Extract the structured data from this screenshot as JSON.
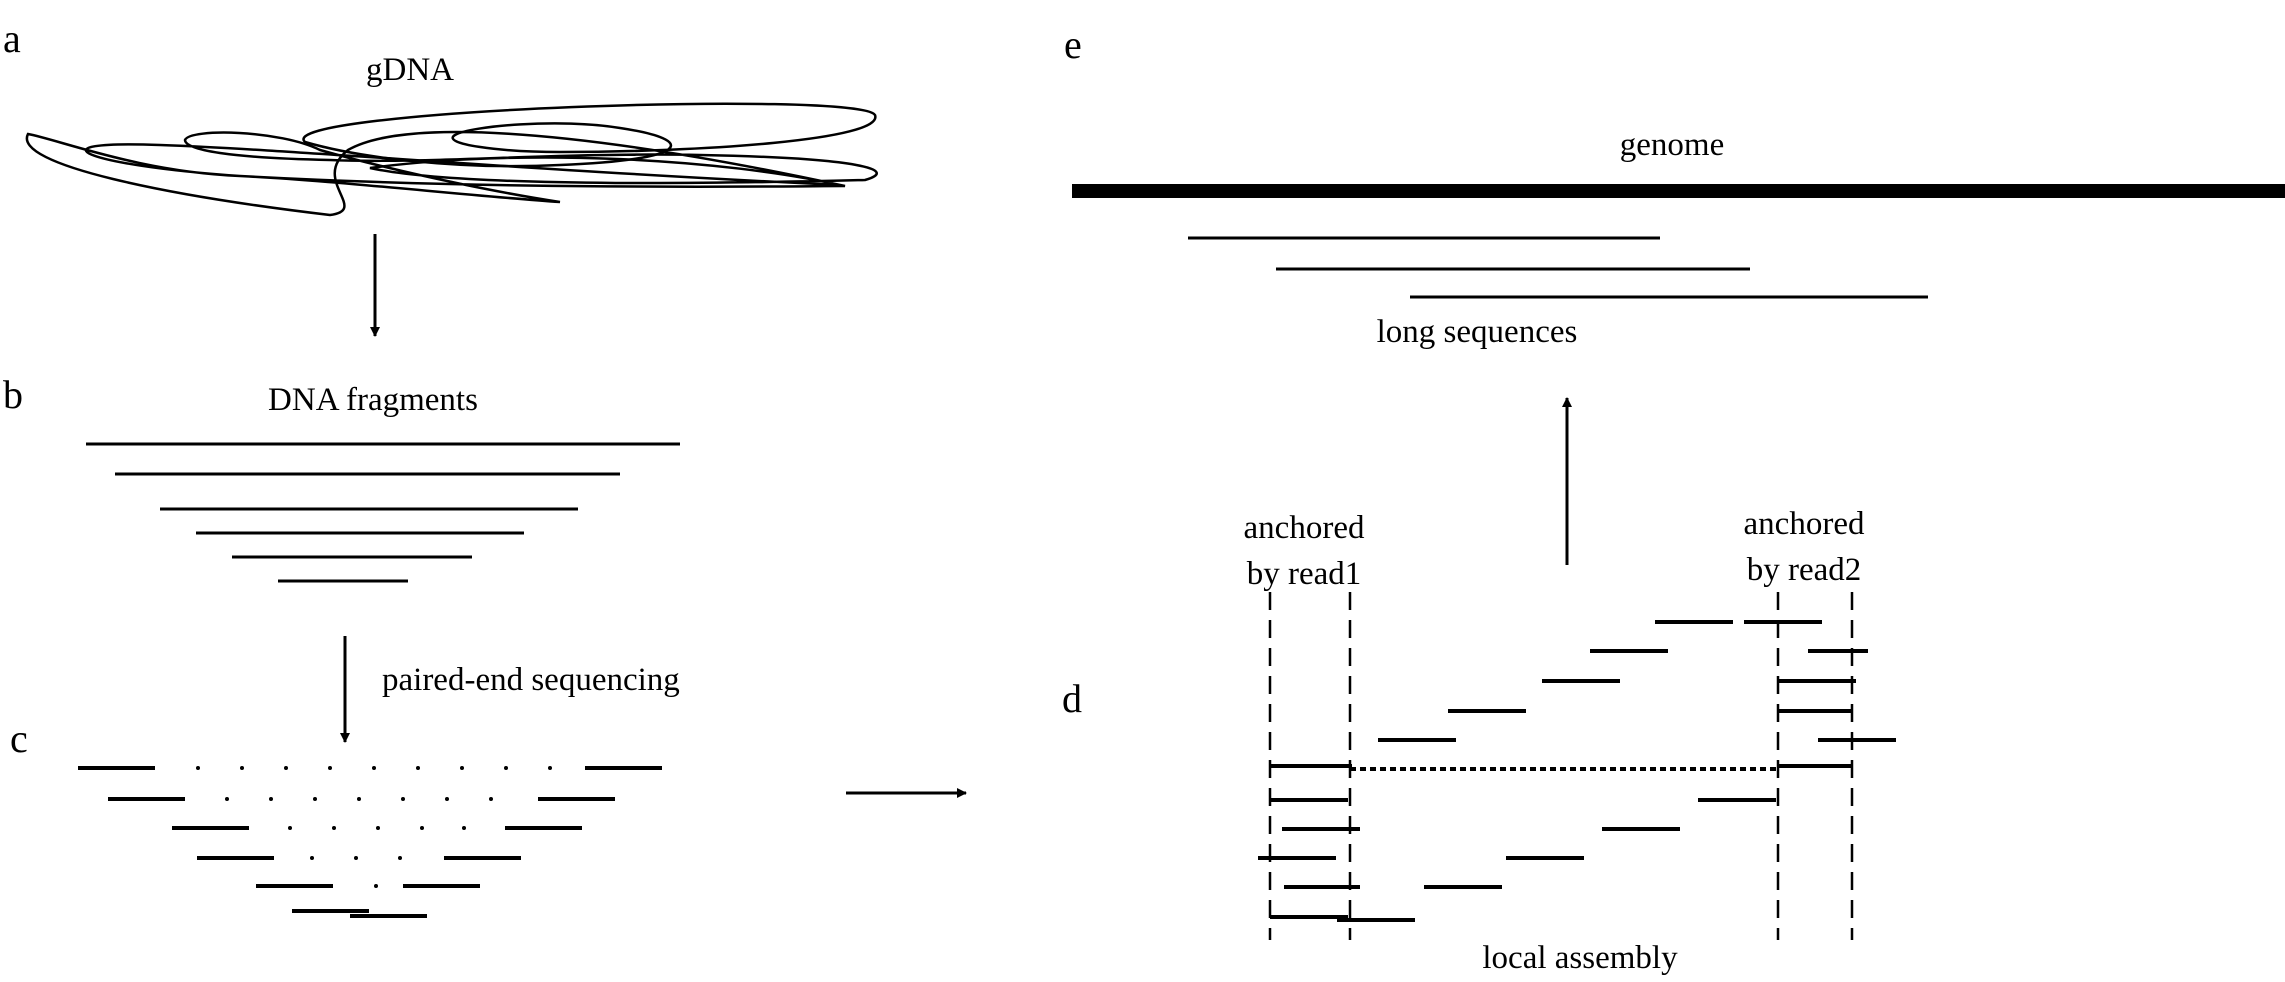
{
  "panels": {
    "a": "a",
    "b": "b",
    "c": "c",
    "d": "d",
    "e": "e"
  },
  "labels": {
    "gdna": "gDNA",
    "dna_fragments": "DNA fragments",
    "paired_end_sequencing": "paired-end sequencing",
    "genome": "genome",
    "long_sequences": "long sequences",
    "anchored_read1_line1": "anchored",
    "anchored_read1_line2": "by read1",
    "anchored_read2_line1": "anchored",
    "anchored_read2_line2": "by read2",
    "local_assembly": "local assembly"
  },
  "colors": {
    "ink": "#000000",
    "background": "#ffffff"
  }
}
